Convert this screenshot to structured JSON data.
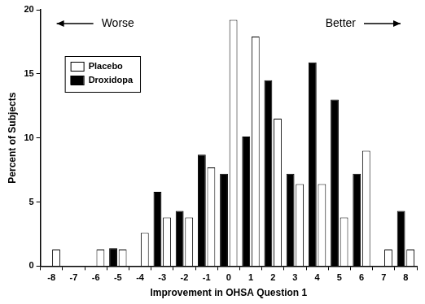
{
  "chart_data": {
    "type": "bar",
    "x_label": "Improvement in OHSA Question 1",
    "y_label": "Percent of Subjects",
    "annotations": [
      "Worse",
      "Better"
    ],
    "categories": [
      -8,
      -7,
      -6,
      -5,
      -4,
      -3,
      -2,
      -1,
      0,
      1,
      2,
      3,
      4,
      5,
      6,
      7,
      8
    ],
    "series": [
      {
        "name": "Placebo",
        "color": "#ffffff",
        "values": [
          1.3,
          0,
          1.3,
          1.3,
          2.6,
          3.8,
          3.8,
          7.7,
          19.2,
          17.9,
          11.5,
          6.4,
          6.4,
          3.8,
          9.0,
          1.3,
          1.3
        ]
      },
      {
        "name": "Droxidopa",
        "color": "#000000",
        "values": [
          0,
          0,
          0,
          1.4,
          0,
          5.8,
          4.3,
          8.7,
          7.2,
          10.1,
          14.5,
          7.2,
          15.9,
          13.0,
          7.2,
          0,
          4.3
        ]
      }
    ],
    "ylim": [
      0,
      20
    ],
    "yticks": [
      0,
      5,
      10,
      15,
      20
    ],
    "grid": false,
    "legend": "upper left"
  }
}
